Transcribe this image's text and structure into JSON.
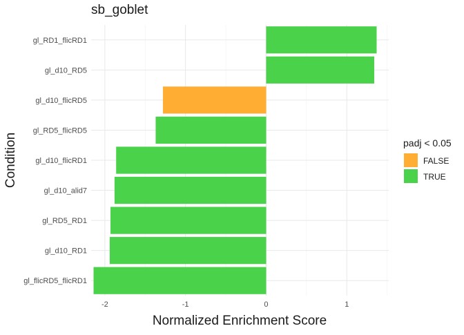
{
  "chart_data": {
    "type": "bar",
    "orientation": "horizontal",
    "title": "sb_goblet",
    "xlabel": "Normalized Enrichment Score",
    "ylabel": "Condition",
    "xlim": [
      -2.17,
      1.52
    ],
    "xticks": [
      -2,
      -1,
      0,
      1
    ],
    "grid": true,
    "categories": [
      "gl_RD1_flicRD1",
      "gl_d10_RD5",
      "gl_d10_flicRD5",
      "gl_RD5_flicRD5",
      "gl_d10_flicRD1",
      "gl_d10_alid7",
      "gl_RD5_RD1",
      "gl_d10_RD1",
      "gl_flicRD5_flicRD1"
    ],
    "values": [
      1.37,
      1.34,
      -1.28,
      -1.37,
      -1.86,
      -1.88,
      -1.93,
      -1.94,
      -2.14
    ],
    "padj_significant": [
      true,
      true,
      false,
      true,
      true,
      true,
      true,
      true,
      true
    ],
    "legend": {
      "title": "padj < 0.05",
      "position": "right",
      "entries": [
        {
          "label": "FALSE",
          "color": "#FFAD33"
        },
        {
          "label": "TRUE",
          "color": "#4AD24A"
        }
      ]
    }
  }
}
